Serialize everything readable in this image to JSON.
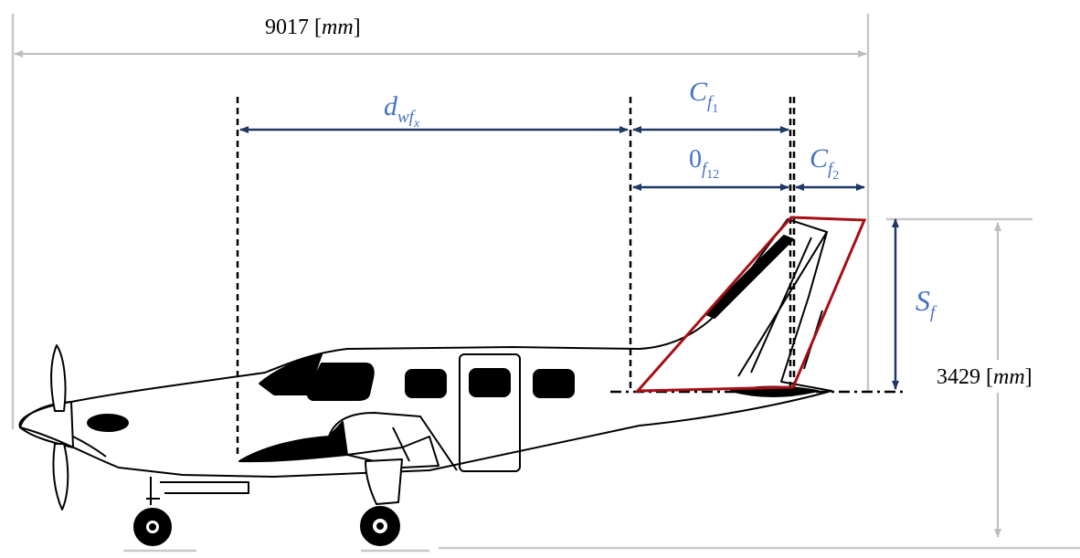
{
  "overall_length": {
    "number": "9017",
    "unit": "mm"
  },
  "overall_height": {
    "number": "3429",
    "unit": "mm"
  },
  "labels": {
    "wing_fin_distance": {
      "base": "d",
      "sub": "wf",
      "subsub": "x"
    },
    "fin_root_chord": {
      "base": "C",
      "sub": "f",
      "subsub": "1"
    },
    "fin_offset": {
      "base": "0",
      "sub": "f",
      "subsub": "12"
    },
    "fin_tip_chord": {
      "base": "C",
      "sub": "f",
      "subsub": "2"
    },
    "fin_span": {
      "base": "S",
      "sub": "f"
    }
  },
  "colors": {
    "dimension_label": "#4472c4",
    "dimension_arrow": "#1f3864",
    "fin_outline": "#a50f15",
    "extension_line": "#c0c0c0",
    "aircraft": "#000000"
  }
}
